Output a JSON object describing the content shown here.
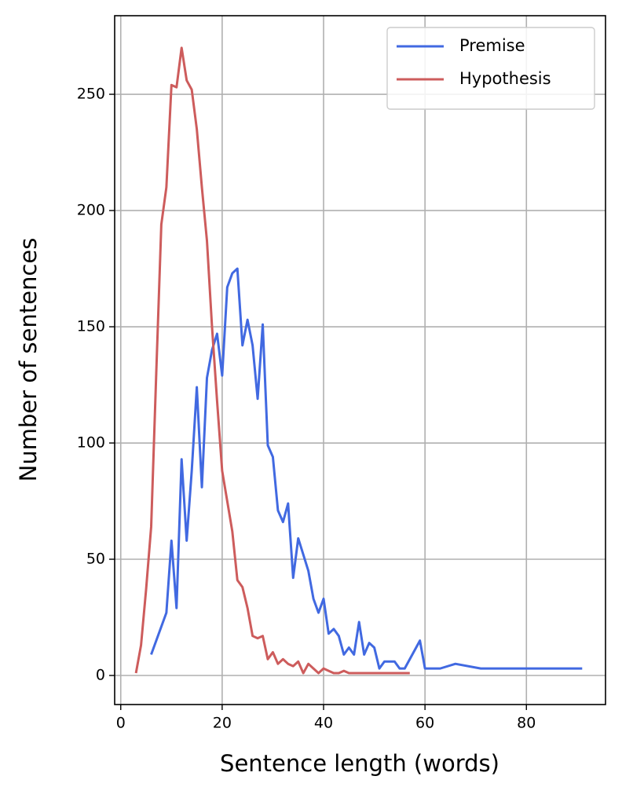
{
  "chart_data": {
    "type": "line",
    "xlabel": "Sentence length (words)",
    "ylabel": "Number of sentences",
    "xlim": [
      -1.2,
      95.6
    ],
    "ylim": [
      -12.5,
      283.8
    ],
    "xticks": [
      0,
      20,
      40,
      60,
      80
    ],
    "yticks": [
      0,
      50,
      100,
      150,
      200,
      250
    ],
    "grid": true,
    "legend_position": "upper right",
    "series": [
      {
        "name": "Premise",
        "color": "#4169e1",
        "x": [
          6,
          9,
          10,
          11,
          12,
          13,
          14,
          15,
          16,
          17,
          18,
          19,
          20,
          21,
          22,
          23,
          24,
          25,
          26,
          27,
          28,
          29,
          30,
          31,
          32,
          33,
          34,
          35,
          36,
          37,
          38,
          39,
          40,
          41,
          42,
          43,
          44,
          45,
          46,
          47,
          48,
          49,
          50,
          51,
          52,
          54,
          55,
          56,
          59,
          60,
          63,
          66,
          71,
          91
        ],
        "values": [
          9,
          27,
          58,
          29,
          93,
          58,
          88,
          124,
          81,
          128,
          140,
          147,
          129,
          167,
          173,
          175,
          142,
          153,
          142,
          119,
          151,
          99,
          94,
          71,
          66,
          74,
          42,
          59,
          52,
          45,
          33,
          27,
          33,
          18,
          20,
          17,
          9,
          12,
          9,
          23,
          9,
          14,
          12,
          3,
          6,
          6,
          3,
          3,
          15,
          3,
          3,
          5,
          3,
          3
        ]
      },
      {
        "name": "Hypothesis",
        "color": "#cd5c5c",
        "x": [
          3,
          4,
          5,
          6,
          7,
          8,
          9,
          10,
          11,
          12,
          13,
          14,
          15,
          16,
          17,
          18,
          19,
          20,
          21,
          22,
          23,
          24,
          25,
          26,
          27,
          28,
          29,
          30,
          31,
          32,
          33,
          34,
          35,
          36,
          37,
          38,
          39,
          40,
          41,
          42,
          43,
          44,
          45,
          46,
          57
        ],
        "values": [
          1,
          13,
          37,
          64,
          130,
          194,
          210,
          254,
          253,
          270,
          256,
          252,
          235,
          210,
          187,
          150,
          118,
          88,
          75,
          62,
          41,
          38,
          29,
          17,
          16,
          17,
          7,
          10,
          5,
          7,
          5,
          4,
          6,
          1,
          5,
          3,
          1,
          3,
          2,
          1,
          1,
          2,
          1,
          1,
          1
        ]
      }
    ]
  }
}
